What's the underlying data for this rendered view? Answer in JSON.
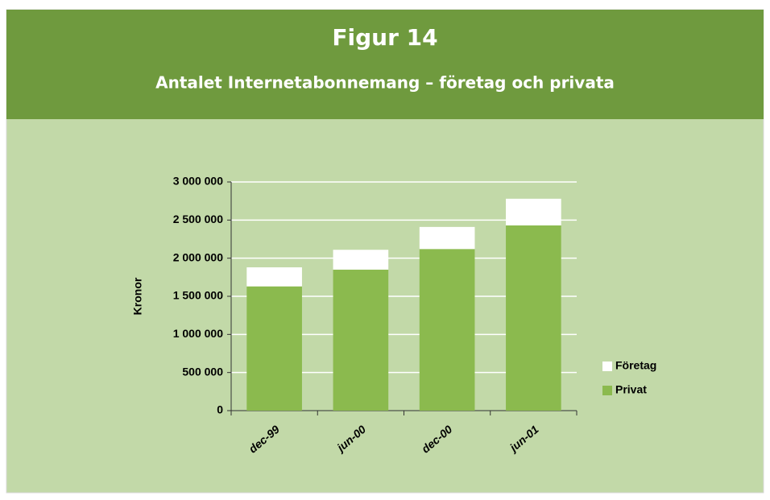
{
  "chart_data": {
    "type": "stacked_bar",
    "title": "Figur 14",
    "subtitle": "Antalet Internetabonnemang – företag och privata",
    "y_label": "Kronor",
    "categories": [
      "dec-99",
      "jun-00",
      "dec-00",
      "jun-01"
    ],
    "series": [
      {
        "name": "Privat",
        "color": "#8bba4e",
        "values": [
          1630000,
          1850000,
          2120000,
          2430000
        ]
      },
      {
        "name": "Företag",
        "color": "#ffffff",
        "values": [
          250000,
          260000,
          290000,
          350000
        ]
      }
    ],
    "ylim": [
      0,
      3000000
    ],
    "yticks": [
      0,
      {
        "value": 500000,
        "label": "500 000"
      },
      {
        "value": 1000000,
        "label": "1 000 000"
      },
      {
        "value": 1500000,
        "label": "1 500 000"
      },
      {
        "value": 2000000,
        "label": "2 000 000"
      },
      {
        "value": 2500000,
        "label": "2 500 000"
      },
      {
        "value": 3000000,
        "label": "3 000 000"
      }
    ],
    "grid": true,
    "legend": "right"
  }
}
